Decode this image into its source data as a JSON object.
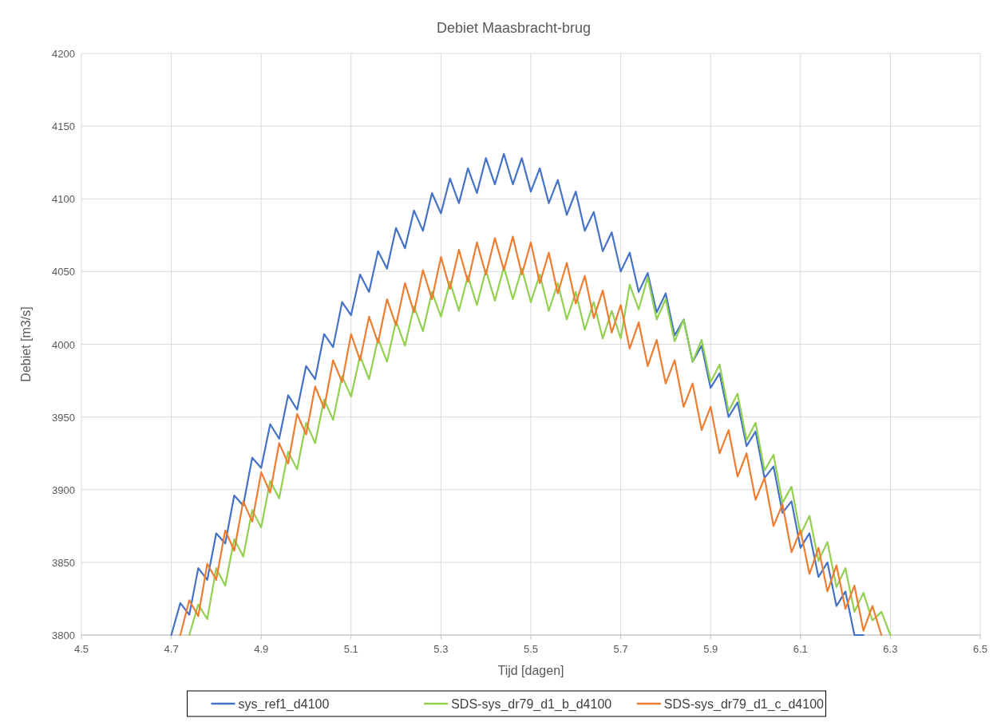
{
  "chart_data": {
    "type": "line",
    "title": "Debiet Maasbracht-brug",
    "xlabel": "Tijd [dagen]",
    "ylabel": "Debiet [m3/s]",
    "xlim": [
      4.5,
      6.5
    ],
    "xticks": [
      4.5,
      4.7,
      4.9,
      5.1,
      5.3,
      5.5,
      5.7,
      5.9,
      6.1,
      6.3,
      6.5
    ],
    "ylim": [
      3800,
      4200
    ],
    "yticks": [
      3800,
      3850,
      3900,
      3950,
      4000,
      4050,
      4100,
      4150,
      4200
    ],
    "grid": true,
    "legend": "bottom",
    "line_style": "solid",
    "marker": "none",
    "series": [
      {
        "name": "sys_ref1_d4100",
        "color": "#4472c4",
        "x": [
          4.7,
          4.72,
          4.74,
          4.76,
          4.78,
          4.8,
          4.82,
          4.84,
          4.86,
          4.88,
          4.9,
          4.92,
          4.94,
          4.96,
          4.98,
          5.0,
          5.02,
          5.04,
          5.06,
          5.08,
          5.1,
          5.12,
          5.14,
          5.16,
          5.18,
          5.2,
          5.22,
          5.24,
          5.26,
          5.28,
          5.3,
          5.32,
          5.34,
          5.36,
          5.38,
          5.4,
          5.42,
          5.44,
          5.46,
          5.48,
          5.5,
          5.52,
          5.54,
          5.56,
          5.58,
          5.6,
          5.62,
          5.64,
          5.66,
          5.68,
          5.7,
          5.72,
          5.74,
          5.76,
          5.78,
          5.8,
          5.82,
          5.84,
          5.86,
          5.88,
          5.9,
          5.92,
          5.94,
          5.96,
          5.98,
          6.0,
          6.02,
          6.04,
          6.06,
          6.08,
          6.1,
          6.12,
          6.14,
          6.16,
          6.18,
          6.2,
          6.22,
          6.24
        ],
        "values": [
          3800,
          3822,
          3814,
          3846,
          3838,
          3870,
          3863,
          3896,
          3889,
          3922,
          3915,
          3945,
          3935,
          3965,
          3955,
          3985,
          3976,
          4007,
          3998,
          4029,
          4020,
          4048,
          4036,
          4064,
          4052,
          4080,
          4066,
          4092,
          4078,
          4104,
          4090,
          4114,
          4097,
          4121,
          4104,
          4128,
          4110,
          4131,
          4110,
          4128,
          4105,
          4121,
          4097,
          4113,
          4089,
          4105,
          4078,
          4091,
          4064,
          4077,
          4050,
          4063,
          4036,
          4049,
          4022,
          4035,
          4006,
          4017,
          3988,
          3999,
          3970,
          3980,
          3950,
          3960,
          3930,
          3940,
          3908,
          3916,
          3884,
          3892,
          3860,
          3870,
          3840,
          3850,
          3820,
          3830,
          3800,
          3800
        ]
      },
      {
        "name": "SDS-sys_dr79_d1_b_d4100",
        "color": "#92d050",
        "x": [
          4.74,
          4.76,
          4.78,
          4.8,
          4.82,
          4.84,
          4.86,
          4.88,
          4.9,
          4.92,
          4.94,
          4.96,
          4.98,
          5.0,
          5.02,
          5.04,
          5.06,
          5.08,
          5.1,
          5.12,
          5.14,
          5.16,
          5.18,
          5.2,
          5.22,
          5.24,
          5.26,
          5.28,
          5.3,
          5.32,
          5.34,
          5.36,
          5.38,
          5.4,
          5.42,
          5.44,
          5.46,
          5.48,
          5.5,
          5.52,
          5.54,
          5.56,
          5.58,
          5.6,
          5.62,
          5.64,
          5.66,
          5.68,
          5.7,
          5.72,
          5.74,
          5.76,
          5.78,
          5.8,
          5.82,
          5.84,
          5.86,
          5.88,
          5.9,
          5.92,
          5.94,
          5.96,
          5.98,
          6.0,
          6.02,
          6.04,
          6.06,
          6.08,
          6.1,
          6.12,
          6.14,
          6.16,
          6.18,
          6.2,
          6.22,
          6.24,
          6.26,
          6.28,
          6.3
        ],
        "values": [
          3800,
          3821,
          3811,
          3846,
          3834,
          3866,
          3854,
          3886,
          3874,
          3906,
          3894,
          3926,
          3914,
          3946,
          3932,
          3962,
          3948,
          3978,
          3964,
          3992,
          3976,
          4004,
          3988,
          4016,
          3999,
          4026,
          4009,
          4036,
          4019,
          4043,
          4023,
          4047,
          4027,
          4051,
          4030,
          4053,
          4031,
          4052,
          4029,
          4048,
          4023,
          4042,
          4017,
          4036,
          4010,
          4029,
          4004,
          4023,
          4004,
          4041,
          4024,
          4046,
          4017,
          4031,
          4002,
          4017,
          3988,
          4003,
          3974,
          3986,
          3954,
          3966,
          3934,
          3946,
          3913,
          3924,
          3891,
          3902,
          3869,
          3882,
          3851,
          3864,
          3833,
          3846,
          3816,
          3829,
          3810,
          3816,
          3800
        ]
      },
      {
        "name": "SDS-sys_dr79_d1_c_d4100",
        "color": "#ed7d31",
        "x": [
          4.72,
          4.74,
          4.76,
          4.78,
          4.8,
          4.82,
          4.84,
          4.86,
          4.88,
          4.9,
          4.92,
          4.94,
          4.96,
          4.98,
          5.0,
          5.02,
          5.04,
          5.06,
          5.08,
          5.1,
          5.12,
          5.14,
          5.16,
          5.18,
          5.2,
          5.22,
          5.24,
          5.26,
          5.28,
          5.3,
          5.32,
          5.34,
          5.36,
          5.38,
          5.4,
          5.42,
          5.44,
          5.46,
          5.48,
          5.5,
          5.52,
          5.54,
          5.56,
          5.58,
          5.6,
          5.62,
          5.64,
          5.66,
          5.68,
          5.7,
          5.72,
          5.74,
          5.76,
          5.78,
          5.8,
          5.82,
          5.84,
          5.86,
          5.88,
          5.9,
          5.92,
          5.94,
          5.96,
          5.98,
          6.0,
          6.02,
          6.04,
          6.06,
          6.08,
          6.1,
          6.12,
          6.14,
          6.16,
          6.18,
          6.2,
          6.22,
          6.24,
          6.26,
          6.28
        ],
        "values": [
          3800,
          3824,
          3813,
          3849,
          3838,
          3872,
          3858,
          3892,
          3878,
          3912,
          3898,
          3932,
          3918,
          3952,
          3938,
          3971,
          3956,
          3989,
          3974,
          4007,
          3989,
          4019,
          4001,
          4031,
          4013,
          4042,
          4022,
          4051,
          4031,
          4060,
          4038,
          4065,
          4043,
          4070,
          4048,
          4073,
          4051,
          4074,
          4048,
          4070,
          4042,
          4063,
          4035,
          4056,
          4028,
          4047,
          4018,
          4037,
          4008,
          4027,
          3997,
          4015,
          3985,
          4003,
          3973,
          3989,
          3957,
          3973,
          3941,
          3957,
          3925,
          3941,
          3909,
          3925,
          3893,
          3908,
          3875,
          3890,
          3857,
          3872,
          3842,
          3860,
          3830,
          3848,
          3818,
          3834,
          3803,
          3820,
          3800
        ]
      }
    ]
  }
}
